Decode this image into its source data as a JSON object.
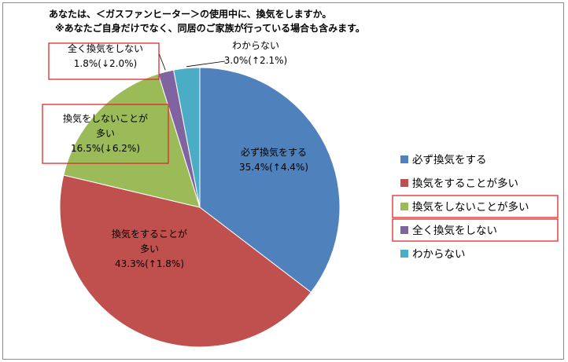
{
  "chart_data": {
    "type": "pie",
    "title": "あなたは、＜ガスファンヒーター＞の使用中に、換気をしますか。",
    "subtitle": "※あなたご自身だけでなく、同居のご家族が行っている場合も含みます。",
    "legend_position": "right",
    "slices": [
      {
        "name": "必ず換気をする",
        "value": 35.4,
        "label_lines": [
          "必ず換気をする",
          "35.4%(↑4.4%)"
        ],
        "color": "#4f81bd",
        "highlighted": false
      },
      {
        "name": "換気をすることが多い",
        "value": 43.3,
        "label_lines": [
          "換気をすることが",
          "多い",
          "43.3%(↑1.8%)"
        ],
        "color": "#c0504d",
        "highlighted": false
      },
      {
        "name": "換気をしないことが多い",
        "value": 16.5,
        "label_lines": [
          "換気をしないことが",
          "多い",
          "16.5%(↓6.2%)"
        ],
        "color": "#9bbb59",
        "highlighted": true
      },
      {
        "name": "全く換気をしない",
        "value": 1.8,
        "label_lines": [
          "全く換気をしない",
          "1.8%(↓2.0%)"
        ],
        "color": "#8064a2",
        "highlighted": true
      },
      {
        "name": "わからない",
        "value": 3.0,
        "label_lines": [
          "わからない",
          "3.0%(↑2.1%)"
        ],
        "color": "#4bacc6",
        "highlighted": false
      }
    ]
  }
}
